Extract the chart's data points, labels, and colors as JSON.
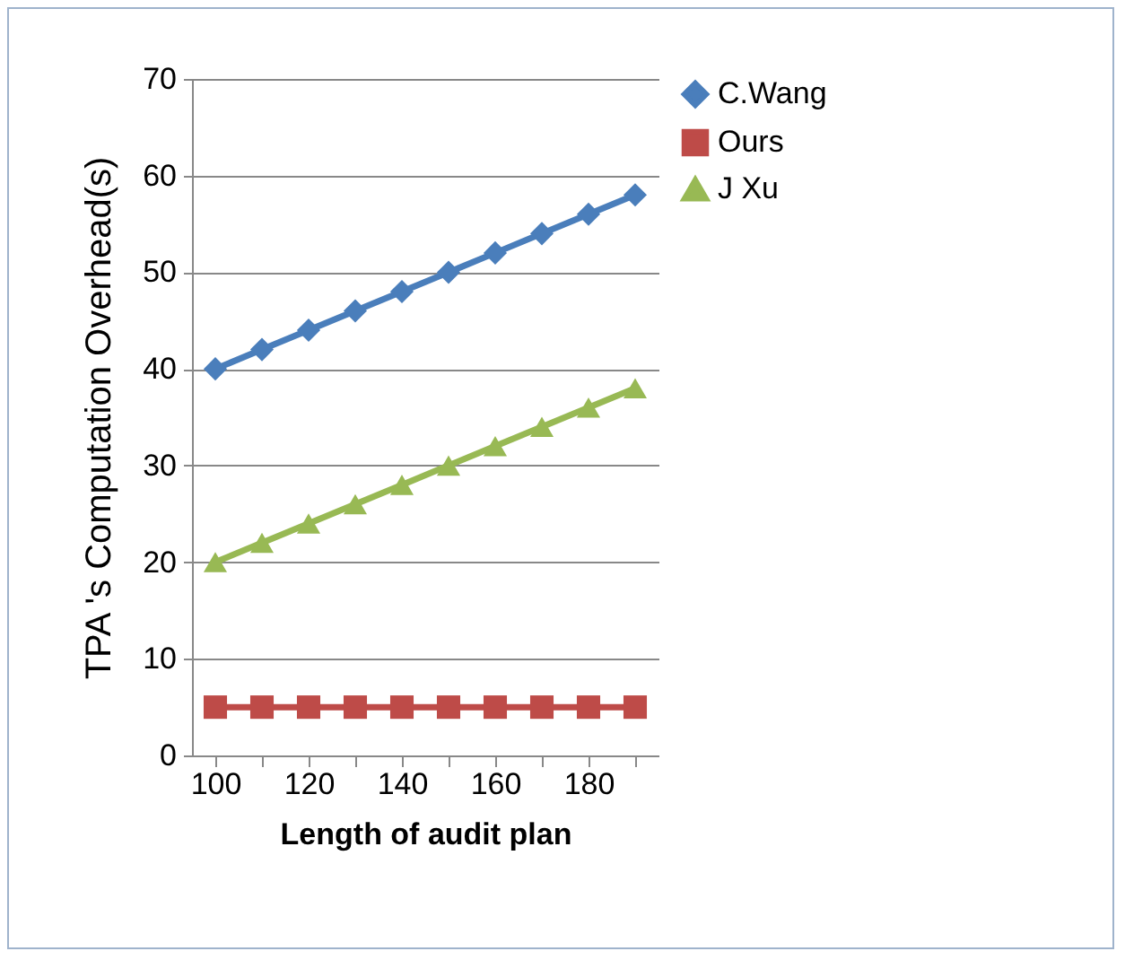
{
  "chart_data": {
    "type": "line",
    "xlabel": "Length of audit plan",
    "ylabel": "TPA 's Computation Overhead(s)",
    "categories": [
      "100",
      null,
      "120",
      null,
      "140",
      null,
      "160",
      null,
      "180",
      null
    ],
    "series": [
      {
        "name": "C.Wang",
        "color": "#4a7ebb",
        "marker": "diamond",
        "values": [
          40,
          42,
          44,
          46,
          48,
          50,
          52,
          54,
          56,
          58
        ]
      },
      {
        "name": "Ours",
        "color": "#be4b48",
        "marker": "square",
        "values": [
          5,
          5,
          5,
          5,
          5,
          5,
          5,
          5,
          5,
          5
        ]
      },
      {
        "name": "J Xu",
        "color": "#98b954",
        "marker": "triangle",
        "values": [
          20,
          22,
          24,
          26,
          28,
          30,
          32,
          34,
          36,
          38
        ]
      }
    ],
    "ylim": [
      0,
      70
    ],
    "yticks": [
      0,
      10,
      20,
      30,
      40,
      50,
      60,
      70
    ],
    "grid": "y",
    "legend": "right",
    "line_style": "solid"
  }
}
